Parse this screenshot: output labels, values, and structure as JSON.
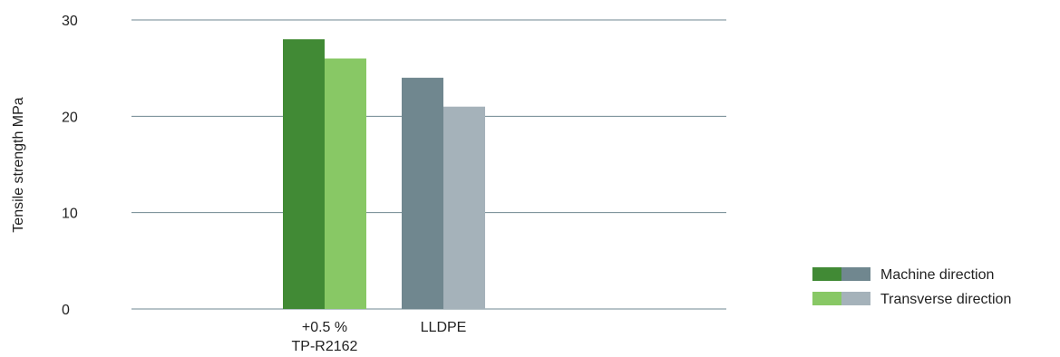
{
  "chart_data": {
    "type": "bar",
    "ylabel": "Tensile strength MPa",
    "ylim": [
      0,
      30
    ],
    "yticks": [
      0,
      10,
      20,
      30
    ],
    "grid": true,
    "legend_position": "bottom-right",
    "categories": [
      {
        "lines": [
          "+0.5 %",
          "TP-R2162"
        ],
        "colors": [
          "#418a35",
          "#88c865"
        ]
      },
      {
        "lines": [
          "LLDPE"
        ],
        "colors": [
          "#70878f",
          "#a5b2ba"
        ]
      }
    ],
    "series": [
      {
        "name": "Machine direction",
        "values": [
          28,
          24
        ]
      },
      {
        "name": "Transverse direction",
        "values": [
          26,
          21
        ]
      }
    ],
    "legend": [
      {
        "label": "Machine direction",
        "swatches": [
          "#418a35",
          "#70878f"
        ]
      },
      {
        "label": "Transverse direction",
        "swatches": [
          "#88c865",
          "#a5b2ba"
        ]
      }
    ]
  }
}
